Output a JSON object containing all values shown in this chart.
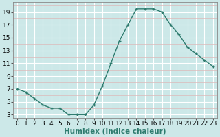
{
  "xlabel": "Humidex (Indice chaleur)",
  "x_values": [
    0,
    1,
    2,
    3,
    4,
    5,
    6,
    7,
    8,
    9,
    10,
    11,
    12,
    13,
    14,
    15,
    16,
    17,
    18,
    19,
    20,
    21,
    22,
    23
  ],
  "y_values": [
    7,
    6.5,
    5.5,
    4.5,
    4,
    4,
    3,
    3,
    3,
    4.5,
    7.5,
    11,
    14.5,
    17,
    19.5,
    19.5,
    19.5,
    19,
    17,
    15.5,
    13.5,
    12.5,
    11.5,
    10.5
  ],
  "line_color": "#2e7b6e",
  "marker": "P",
  "marker_size": 2.5,
  "bg_color": "#cce8e8",
  "minor_grid_color": "#ddb8b8",
  "major_grid_color": "#ffffff",
  "ylim": [
    2.5,
    20.5
  ],
  "xlim": [
    -0.5,
    23.5
  ],
  "yticks": [
    3,
    5,
    7,
    9,
    11,
    13,
    15,
    17,
    19
  ],
  "xticks": [
    0,
    1,
    2,
    3,
    4,
    5,
    6,
    7,
    8,
    9,
    10,
    11,
    12,
    13,
    14,
    15,
    16,
    17,
    18,
    19,
    20,
    21,
    22,
    23
  ],
  "tick_label_fontsize": 6.5,
  "xlabel_fontsize": 7.5,
  "line_width": 1.0
}
